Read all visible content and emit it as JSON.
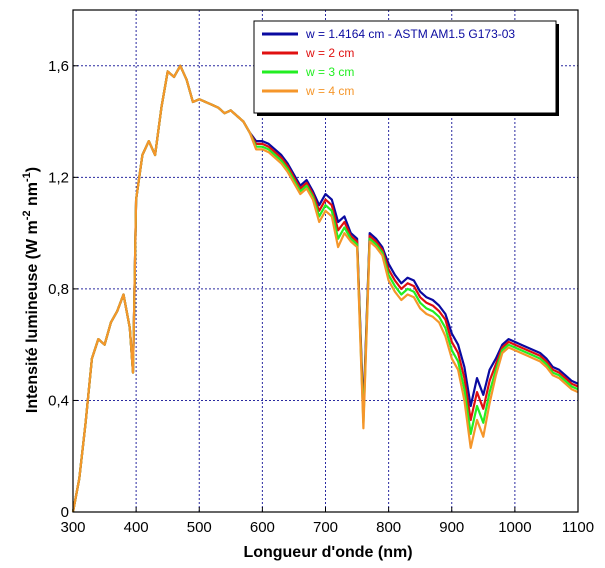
{
  "chart_data": {
    "type": "line",
    "xlabel": "Longueur d'onde (nm)",
    "ylabel_main": "Intensité lumineuse (W m",
    "ylabel_sup1": "-2",
    "ylabel_mid": " nm",
    "ylabel_sup2": "-1",
    "ylabel_end": ")",
    "xlim": [
      300,
      1100
    ],
    "ylim": [
      0,
      1.8
    ],
    "x_ticks": [
      300,
      400,
      500,
      600,
      700,
      800,
      900,
      1000,
      1100
    ],
    "x_tick_labels": [
      "300",
      "400",
      "500",
      "600",
      "700",
      "800",
      "900",
      "1000",
      "1100"
    ],
    "y_ticks": [
      0,
      0.4,
      0.8,
      1.2,
      1.6
    ],
    "y_tick_labels": [
      "0",
      "0,4",
      "0,8",
      "1,2",
      "1,6"
    ],
    "grid": true,
    "legend_position": "top-right",
    "x": [
      300,
      310,
      320,
      330,
      340,
      350,
      360,
      370,
      380,
      390,
      395,
      400,
      410,
      420,
      430,
      440,
      450,
      460,
      470,
      480,
      490,
      500,
      510,
      520,
      530,
      540,
      550,
      560,
      570,
      580,
      590,
      600,
      610,
      620,
      630,
      640,
      650,
      660,
      670,
      680,
      690,
      700,
      710,
      720,
      730,
      740,
      750,
      760,
      770,
      780,
      790,
      800,
      810,
      820,
      830,
      840,
      850,
      860,
      870,
      880,
      890,
      900,
      910,
      920,
      930,
      940,
      950,
      960,
      970,
      980,
      990,
      1000,
      1010,
      1020,
      1030,
      1040,
      1050,
      1060,
      1070,
      1080,
      1090,
      1100
    ],
    "series": [
      {
        "name": "w = 1.4164 cm - ASTM AM1.5 G173-03",
        "color": "#0a0aa0",
        "values": [
          0.0,
          0.12,
          0.32,
          0.55,
          0.62,
          0.6,
          0.68,
          0.72,
          0.78,
          0.66,
          0.5,
          1.12,
          1.28,
          1.33,
          1.28,
          1.45,
          1.58,
          1.56,
          1.6,
          1.55,
          1.47,
          1.48,
          1.47,
          1.46,
          1.45,
          1.43,
          1.44,
          1.42,
          1.4,
          1.36,
          1.33,
          1.33,
          1.32,
          1.3,
          1.28,
          1.25,
          1.21,
          1.17,
          1.19,
          1.15,
          1.1,
          1.14,
          1.12,
          1.04,
          1.06,
          1.0,
          0.98,
          0.36,
          1.0,
          0.98,
          0.95,
          0.89,
          0.85,
          0.82,
          0.84,
          0.83,
          0.79,
          0.77,
          0.76,
          0.74,
          0.71,
          0.64,
          0.6,
          0.52,
          0.38,
          0.48,
          0.42,
          0.51,
          0.55,
          0.6,
          0.62,
          0.61,
          0.6,
          0.59,
          0.58,
          0.57,
          0.55,
          0.52,
          0.51,
          0.49,
          0.47,
          0.46
        ]
      },
      {
        "name": "w = 2 cm",
        "color": "#e01010",
        "values": [
          0.0,
          0.12,
          0.32,
          0.55,
          0.62,
          0.6,
          0.68,
          0.72,
          0.78,
          0.66,
          0.5,
          1.12,
          1.28,
          1.33,
          1.28,
          1.45,
          1.58,
          1.56,
          1.6,
          1.55,
          1.47,
          1.48,
          1.47,
          1.46,
          1.45,
          1.43,
          1.44,
          1.42,
          1.4,
          1.36,
          1.32,
          1.32,
          1.31,
          1.29,
          1.27,
          1.24,
          1.2,
          1.16,
          1.18,
          1.14,
          1.08,
          1.12,
          1.1,
          1.01,
          1.04,
          0.99,
          0.97,
          0.34,
          0.99,
          0.97,
          0.94,
          0.87,
          0.83,
          0.8,
          0.82,
          0.81,
          0.77,
          0.75,
          0.74,
          0.72,
          0.69,
          0.61,
          0.57,
          0.48,
          0.33,
          0.43,
          0.37,
          0.47,
          0.53,
          0.59,
          0.61,
          0.6,
          0.59,
          0.58,
          0.57,
          0.56,
          0.54,
          0.51,
          0.5,
          0.48,
          0.46,
          0.45
        ]
      },
      {
        "name": "w = 3 cm",
        "color": "#22ee22",
        "values": [
          0.0,
          0.12,
          0.32,
          0.55,
          0.62,
          0.6,
          0.68,
          0.72,
          0.78,
          0.66,
          0.5,
          1.12,
          1.28,
          1.33,
          1.28,
          1.45,
          1.58,
          1.56,
          1.6,
          1.55,
          1.47,
          1.48,
          1.47,
          1.46,
          1.45,
          1.43,
          1.44,
          1.42,
          1.4,
          1.36,
          1.31,
          1.31,
          1.3,
          1.28,
          1.26,
          1.23,
          1.19,
          1.15,
          1.17,
          1.13,
          1.06,
          1.1,
          1.08,
          0.98,
          1.02,
          0.98,
          0.96,
          0.32,
          0.98,
          0.96,
          0.93,
          0.85,
          0.81,
          0.78,
          0.8,
          0.79,
          0.75,
          0.73,
          0.72,
          0.7,
          0.66,
          0.58,
          0.54,
          0.44,
          0.28,
          0.38,
          0.32,
          0.43,
          0.51,
          0.58,
          0.6,
          0.59,
          0.58,
          0.57,
          0.56,
          0.55,
          0.53,
          0.5,
          0.49,
          0.47,
          0.45,
          0.44
        ]
      },
      {
        "name": "w = 4 cm",
        "color": "#f5962a",
        "values": [
          0.0,
          0.12,
          0.32,
          0.55,
          0.62,
          0.6,
          0.68,
          0.72,
          0.78,
          0.66,
          0.5,
          1.12,
          1.28,
          1.33,
          1.28,
          1.45,
          1.58,
          1.56,
          1.6,
          1.55,
          1.47,
          1.48,
          1.47,
          1.46,
          1.45,
          1.43,
          1.44,
          1.42,
          1.4,
          1.36,
          1.3,
          1.3,
          1.29,
          1.27,
          1.25,
          1.22,
          1.18,
          1.14,
          1.16,
          1.12,
          1.04,
          1.08,
          1.06,
          0.95,
          1.0,
          0.97,
          0.95,
          0.3,
          0.97,
          0.95,
          0.92,
          0.83,
          0.79,
          0.76,
          0.78,
          0.77,
          0.73,
          0.71,
          0.7,
          0.68,
          0.63,
          0.55,
          0.51,
          0.4,
          0.23,
          0.33,
          0.27,
          0.39,
          0.49,
          0.57,
          0.59,
          0.58,
          0.57,
          0.56,
          0.55,
          0.54,
          0.52,
          0.49,
          0.48,
          0.46,
          0.44,
          0.43
        ]
      }
    ]
  }
}
